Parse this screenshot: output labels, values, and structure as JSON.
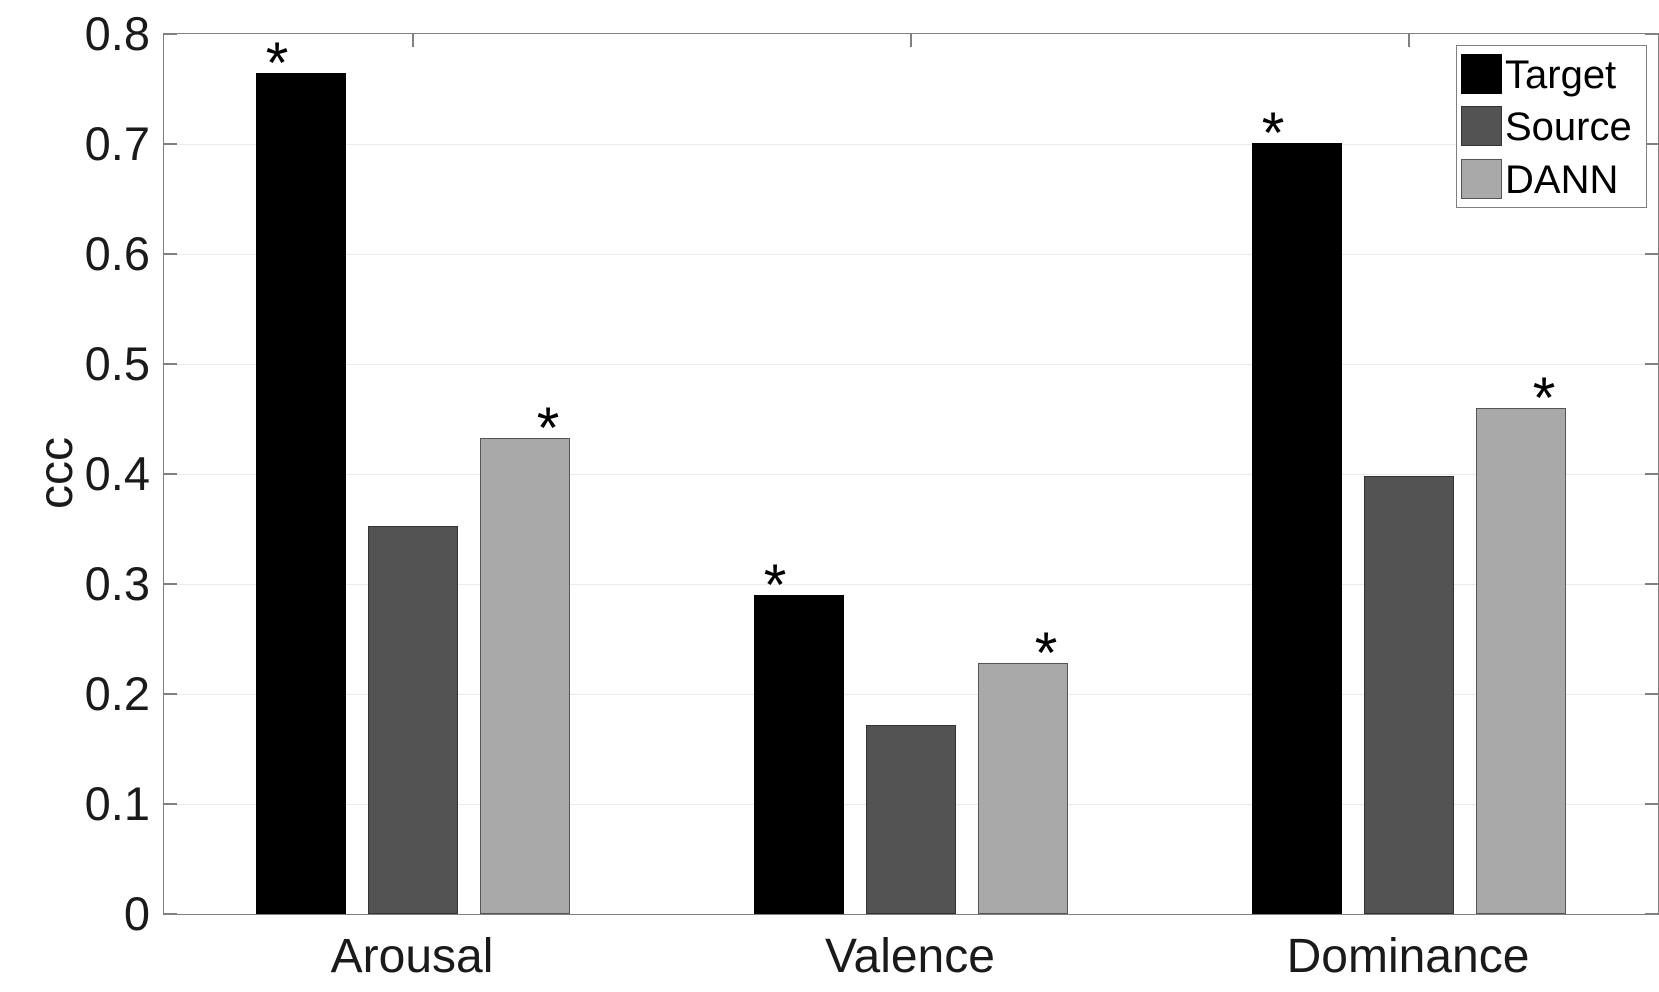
{
  "chart_data": {
    "type": "bar",
    "title": "",
    "xlabel": "",
    "ylabel": "ccc",
    "categories": [
      "Arousal",
      "Valence",
      "Dominance"
    ],
    "series": [
      {
        "name": "Target",
        "color": "#000000",
        "edge_color": "#000000",
        "values": [
          0.765,
          0.29,
          0.701
        ],
        "significant": [
          true,
          true,
          true
        ]
      },
      {
        "name": "Source",
        "color": "#535353",
        "edge_color": "#333333",
        "values": [
          0.353,
          0.172,
          0.398
        ],
        "significant": [
          false,
          false,
          false
        ]
      },
      {
        "name": "DANN",
        "color": "#a9a9a9",
        "edge_color": "#555555",
        "values": [
          0.433,
          0.228,
          0.46
        ],
        "significant": [
          true,
          true,
          true
        ]
      }
    ],
    "ylim": [
      0,
      0.8
    ],
    "ytick_values": [
      0,
      0.1,
      0.2,
      0.3,
      0.4,
      0.5,
      0.6,
      0.7,
      0.8
    ],
    "ytick_labels": [
      "0",
      "0.1",
      "0.2",
      "0.3",
      "0.4",
      "0.5",
      "0.6",
      "0.7",
      "0.8"
    ],
    "significance_marker": "*",
    "grid": "horizontal",
    "legend_position": "top-right",
    "legend_entries": [
      "Target",
      "Source",
      "DANN"
    ],
    "colors": {
      "grid": "#ebebeb",
      "axis_box": "#808080",
      "text": "#1a1a1a"
    }
  }
}
